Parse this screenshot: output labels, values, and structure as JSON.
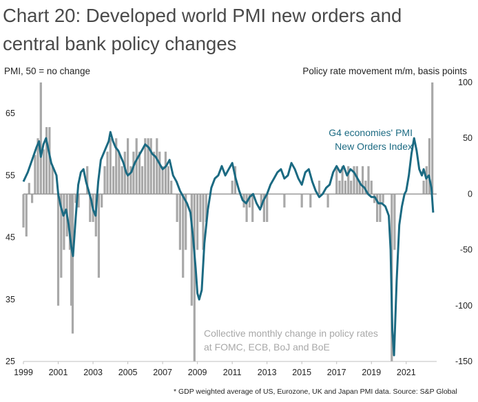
{
  "chart_data": {
    "type": "bar+line",
    "title": "Chart 20: Developed world PMI new orders and central bank policy changes",
    "title_line1": "Chart 20: Developed world PMI new orders and",
    "title_line2": "central bank policy changes",
    "left_axis_label": "PMI, 50 = no change",
    "right_axis_label": "Policy rate movement m/m, basis points",
    "left_ylim": [
      25,
      70
    ],
    "right_ylim": [
      -150,
      100
    ],
    "left_ticks": [
      "65",
      "55",
      "45",
      "35",
      "25"
    ],
    "right_ticks": [
      "100",
      "50",
      "0",
      "-50",
      "-100",
      "-150"
    ],
    "x_ticks": [
      "1999",
      "2001",
      "2003",
      "2005",
      "2007",
      "2009",
      "2011",
      "2013",
      "2015",
      "2017",
      "2019",
      "2021"
    ],
    "xlim": [
      1999.0,
      2022.75
    ],
    "colors": {
      "line": "#1b6a82",
      "bars": "#a8a8a8",
      "zero_line": "#999999"
    },
    "series": [
      {
        "name": "G4 economies' PMI New Orders Index",
        "label_line1": "G4 economies' PMI",
        "label_line2": "New Orders Index",
        "axis": "left",
        "x": [
          1999.0,
          1999.25,
          1999.5,
          1999.75,
          1999.9,
          2000.0,
          2000.15,
          2000.3,
          2000.45,
          2000.6,
          2000.75,
          2000.9,
          2001.0,
          2001.15,
          2001.3,
          2001.45,
          2001.6,
          2001.75,
          2001.85,
          2002.0,
          2002.15,
          2002.3,
          2002.45,
          2002.6,
          2002.75,
          2002.9,
          2003.0,
          2003.15,
          2003.3,
          2003.45,
          2003.6,
          2003.75,
          2003.9,
          2004.0,
          2004.15,
          2004.3,
          2004.45,
          2004.6,
          2004.75,
          2004.9,
          2005.0,
          2005.2,
          2005.4,
          2005.6,
          2005.8,
          2006.0,
          2006.2,
          2006.4,
          2006.6,
          2006.8,
          2007.0,
          2007.2,
          2007.4,
          2007.6,
          2007.8,
          2008.0,
          2008.2,
          2008.4,
          2008.6,
          2008.75,
          2008.9,
          2009.0,
          2009.1,
          2009.25,
          2009.4,
          2009.6,
          2009.8,
          2010.0,
          2010.2,
          2010.4,
          2010.6,
          2010.8,
          2011.0,
          2011.2,
          2011.4,
          2011.6,
          2011.8,
          2012.0,
          2012.2,
          2012.4,
          2012.6,
          2012.8,
          2013.0,
          2013.2,
          2013.4,
          2013.6,
          2013.8,
          2014.0,
          2014.2,
          2014.4,
          2014.6,
          2014.8,
          2015.0,
          2015.2,
          2015.4,
          2015.6,
          2015.8,
          2016.0,
          2016.2,
          2016.4,
          2016.6,
          2016.8,
          2017.0,
          2017.2,
          2017.4,
          2017.6,
          2017.8,
          2018.0,
          2018.2,
          2018.4,
          2018.6,
          2018.8,
          2019.0,
          2019.2,
          2019.4,
          2019.6,
          2019.8,
          2020.0,
          2020.1,
          2020.2,
          2020.3,
          2020.45,
          2020.6,
          2020.75,
          2020.9,
          2021.0,
          2021.15,
          2021.3,
          2021.45,
          2021.6,
          2021.75,
          2021.9,
          2022.0,
          2022.15,
          2022.3,
          2022.45,
          2022.55
        ],
        "values": [
          54.0,
          55.5,
          57.5,
          59.5,
          60.5,
          58.0,
          60.0,
          61.0,
          59.0,
          57.0,
          56.0,
          55.0,
          52.0,
          50.0,
          48.5,
          49.5,
          47.0,
          43.5,
          42.0,
          48.0,
          53.5,
          55.5,
          56.0,
          54.0,
          52.5,
          51.0,
          49.5,
          48.5,
          54.0,
          57.5,
          58.5,
          59.5,
          60.5,
          62.0,
          60.5,
          59.5,
          59.0,
          58.0,
          57.0,
          55.5,
          55.0,
          55.5,
          57.0,
          58.0,
          59.0,
          60.0,
          59.5,
          58.5,
          58.0,
          57.0,
          56.0,
          56.5,
          57.5,
          55.0,
          54.0,
          52.5,
          51.5,
          50.5,
          49.0,
          45.0,
          40.0,
          36.0,
          35.0,
          36.5,
          44.0,
          49.5,
          53.0,
          54.5,
          55.0,
          56.5,
          55.0,
          56.0,
          57.0,
          54.5,
          52.5,
          51.0,
          50.5,
          51.5,
          52.0,
          50.5,
          49.5,
          51.0,
          52.0,
          53.5,
          54.5,
          55.5,
          56.0,
          54.5,
          55.0,
          57.0,
          56.0,
          54.5,
          53.5,
          55.5,
          56.0,
          54.0,
          52.5,
          51.5,
          52.0,
          53.0,
          53.5,
          55.5,
          56.5,
          55.5,
          56.5,
          55.0,
          56.0,
          55.5,
          54.5,
          53.5,
          53.0,
          52.0,
          51.5,
          51.5,
          50.5,
          50.5,
          50.0,
          48.5,
          43.0,
          30.0,
          26.0,
          38.0,
          47.0,
          50.0,
          52.0,
          52.5,
          55.0,
          58.5,
          61.0,
          59.0,
          56.0,
          55.0,
          56.0,
          54.5,
          55.0,
          53.0,
          49.0
        ]
      },
      {
        "name": "Collective monthly change in policy rates at FOMC, ECB, BoJ and BoE",
        "label_line1": "Collective monthly change in policy rates",
        "label_line2": "at FOMC, ECB, BoJ and BoE",
        "axis": "right",
        "x": [
          1999.0,
          1999.17,
          1999.33,
          1999.5,
          1999.67,
          1999.83,
          2000.0,
          2000.17,
          2000.33,
          2000.5,
          2000.67,
          2000.83,
          2001.0,
          2001.17,
          2001.33,
          2001.5,
          2001.67,
          2001.75,
          2001.83,
          2002.0,
          2002.17,
          2002.33,
          2002.5,
          2002.67,
          2002.83,
          2003.0,
          2003.17,
          2003.33,
          2003.5,
          2003.67,
          2003.83,
          2004.0,
          2004.17,
          2004.33,
          2004.5,
          2004.67,
          2004.83,
          2005.0,
          2005.17,
          2005.33,
          2005.5,
          2005.67,
          2005.83,
          2006.0,
          2006.17,
          2006.33,
          2006.5,
          2006.67,
          2006.83,
          2007.0,
          2007.17,
          2007.33,
          2007.5,
          2007.67,
          2007.83,
          2008.0,
          2008.17,
          2008.33,
          2008.5,
          2008.67,
          2008.83,
          2009.0,
          2009.17,
          2009.33,
          2009.5,
          2009.67,
          2009.83,
          2010.0,
          2010.5,
          2011.0,
          2011.17,
          2011.33,
          2011.5,
          2011.67,
          2011.83,
          2012.0,
          2012.17,
          2012.33,
          2012.5,
          2012.67,
          2012.83,
          2013.0,
          2013.5,
          2014.0,
          2014.5,
          2015.0,
          2015.5,
          2016.0,
          2016.5,
          2017.0,
          2017.17,
          2017.33,
          2017.5,
          2017.67,
          2017.83,
          2018.0,
          2018.17,
          2018.33,
          2018.5,
          2018.67,
          2018.83,
          2019.0,
          2019.17,
          2019.33,
          2019.5,
          2019.67,
          2019.83,
          2020.0,
          2020.17,
          2020.33,
          2020.5,
          2021.0,
          2021.5,
          2022.0,
          2022.17,
          2022.33,
          2022.5
        ],
        "values": [
          -30,
          -38,
          10,
          -8,
          35,
          50,
          100,
          40,
          60,
          60,
          25,
          0,
          -100,
          -75,
          -50,
          -38,
          -50,
          -100,
          -125,
          -8,
          -12,
          0,
          0,
          25,
          -25,
          -25,
          -38,
          -75,
          -12,
          25,
          38,
          50,
          25,
          50,
          38,
          25,
          38,
          50,
          25,
          38,
          50,
          38,
          25,
          50,
          50,
          50,
          38,
          50,
          38,
          25,
          38,
          25,
          12,
          0,
          -25,
          -50,
          -75,
          -50,
          0,
          -100,
          -150,
          -50,
          -25,
          -50,
          -25,
          0,
          0,
          0,
          0,
          12,
          25,
          0,
          0,
          -12,
          -25,
          -12,
          -25,
          0,
          0,
          -12,
          -25,
          -25,
          0,
          -12,
          0,
          -12,
          -12,
          12,
          -12,
          25,
          12,
          25,
          12,
          25,
          12,
          25,
          25,
          12,
          25,
          12,
          25,
          12,
          -8,
          -25,
          -25,
          -8,
          0,
          0,
          -150,
          -50,
          0,
          0,
          0,
          12,
          25,
          50,
          100
        ]
      }
    ]
  },
  "footnote": "* GDP weighted average of US, Eurozone, UK and Japan PMI data. Source: S&P Global"
}
